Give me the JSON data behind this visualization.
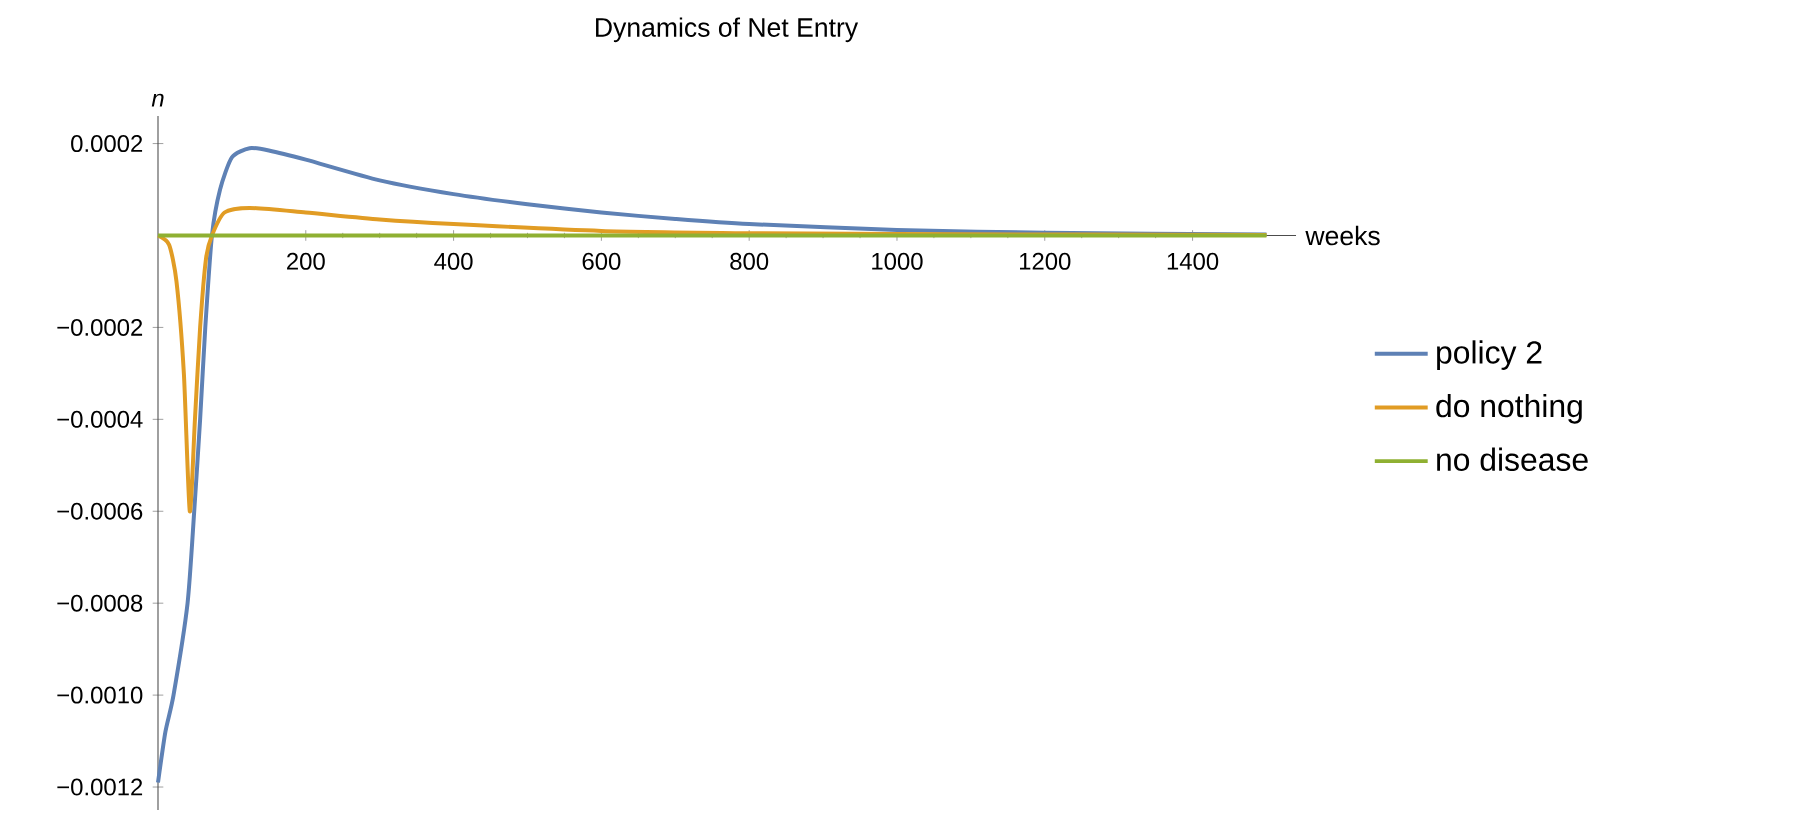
{
  "chart_data": {
    "type": "line",
    "title": "Dynamics of Net Entry",
    "xlabel": "weeks",
    "ylabel": "n",
    "xlim": [
      0,
      1540
    ],
    "ylim": [
      -0.00125,
      0.00026
    ],
    "xticks": [
      200,
      400,
      600,
      800,
      1000,
      1200,
      1400
    ],
    "yticks": [
      {
        "value": -0.0012,
        "label": "−0.0012"
      },
      {
        "value": -0.001,
        "label": "−0.0010"
      },
      {
        "value": -0.0008,
        "label": "−0.0008"
      },
      {
        "value": -0.0006,
        "label": "−0.0006"
      },
      {
        "value": -0.0004,
        "label": "−0.0004"
      },
      {
        "value": -0.0002,
        "label": "−0.0002"
      },
      0.0002
    ],
    "legend": "right",
    "grid": false,
    "marker": "none",
    "line_style": "solid",
    "series": [
      {
        "name": "policy 2",
        "color": "#5e81b5",
        "x": [
          0,
          10,
          21,
          40,
          49,
          57,
          64,
          73,
          84,
          100,
          124,
          150,
          200,
          300,
          400,
          500,
          600,
          700,
          800,
          1000,
          1200,
          1500
        ],
        "values": [
          -0.00119,
          -0.00108,
          -0.001,
          -0.0008,
          -0.0006,
          -0.0004,
          -0.0002,
          0,
          0.0001,
          0.00017,
          0.00019,
          0.000185,
          0.000165,
          0.00012,
          9e-05,
          6.8e-05,
          5e-05,
          3.6e-05,
          2.5e-05,
          1.2e-05,
          6e-06,
          2e-06
        ]
      },
      {
        "name": "do nothing",
        "color": "#e19c24",
        "x": [
          0,
          15,
          25,
          35,
          43,
          50,
          57,
          65,
          73,
          90,
          124,
          200,
          300,
          400,
          600,
          800,
          1000,
          1500
        ],
        "values": [
          0,
          -2e-05,
          -0.0001,
          -0.0003,
          -0.0006,
          -0.0004,
          -0.0002,
          -5e-05,
          0,
          5e-05,
          6e-05,
          5e-05,
          3.5e-05,
          2.5e-05,
          1e-05,
          5e-06,
          3e-06,
          1e-06
        ]
      },
      {
        "name": "no disease",
        "color": "#8fb032",
        "x": [
          0,
          1500
        ],
        "values": [
          0,
          0
        ]
      }
    ]
  }
}
